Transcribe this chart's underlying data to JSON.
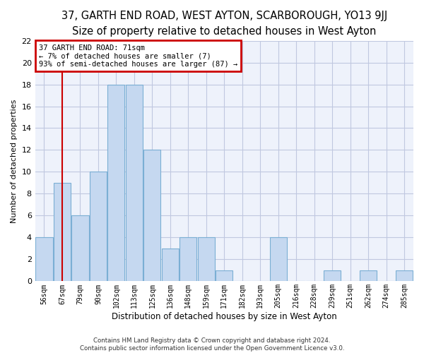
{
  "title": "37, GARTH END ROAD, WEST AYTON, SCARBOROUGH, YO13 9JJ",
  "subtitle": "Size of property relative to detached houses in West Ayton",
  "xlabel": "Distribution of detached houses by size in West Ayton",
  "ylabel": "Number of detached properties",
  "categories": [
    "56sqm",
    "67sqm",
    "79sqm",
    "90sqm",
    "102sqm",
    "113sqm",
    "125sqm",
    "136sqm",
    "148sqm",
    "159sqm",
    "171sqm",
    "182sqm",
    "193sqm",
    "205sqm",
    "216sqm",
    "228sqm",
    "239sqm",
    "251sqm",
    "262sqm",
    "274sqm",
    "285sqm"
  ],
  "values": [
    4,
    9,
    6,
    10,
    18,
    18,
    12,
    3,
    4,
    4,
    1,
    0,
    0,
    4,
    0,
    0,
    1,
    0,
    1,
    0,
    1
  ],
  "bar_color": "#c5d8f0",
  "bar_edge_color": "#7bafd4",
  "grid_color": "#c0c8e0",
  "background_color": "#eef2fb",
  "red_line_x": 1,
  "annotation_line1": "37 GARTH END ROAD: 71sqm",
  "annotation_line2": "← 7% of detached houses are smaller (7)",
  "annotation_line3": "93% of semi-detached houses are larger (87) →",
  "annotation_box_color": "#ffffff",
  "annotation_border_color": "#cc0000",
  "footer_line1": "Contains HM Land Registry data © Crown copyright and database right 2024.",
  "footer_line2": "Contains public sector information licensed under the Open Government Licence v3.0.",
  "ylim": [
    0,
    22
  ],
  "yticks": [
    0,
    2,
    4,
    6,
    8,
    10,
    12,
    14,
    16,
    18,
    20,
    22
  ],
  "red_line_color": "#cc0000",
  "title_fontsize": 10.5,
  "subtitle_fontsize": 9.5,
  "annotation_fontsize": 7.5
}
